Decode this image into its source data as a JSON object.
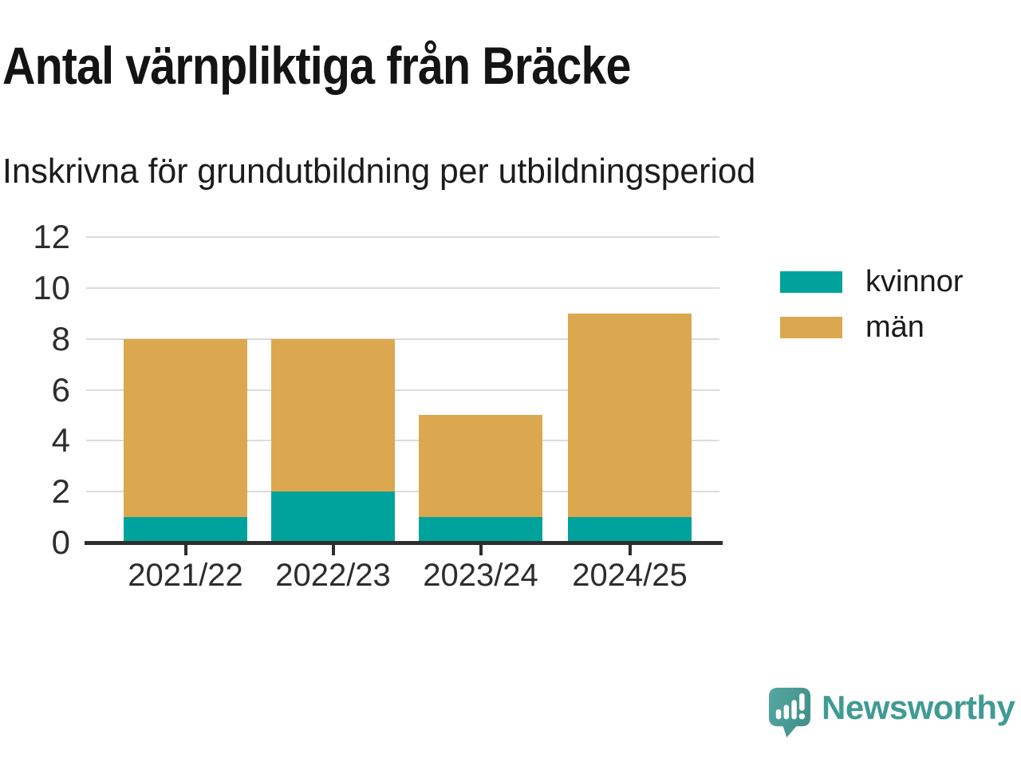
{
  "header": {
    "title": "Antal värnpliktiga från Bräcke",
    "subtitle": "Inskrivna för grundutbildning per utbildningsperiod"
  },
  "chart_data": {
    "type": "bar",
    "stacked": true,
    "title": "Antal värnpliktiga från Bräcke",
    "subtitle": "Inskrivna för grundutbildning per utbildningsperiod",
    "categories": [
      "2021/22",
      "2022/23",
      "2023/24",
      "2024/25"
    ],
    "series": [
      {
        "name": "kvinnor",
        "color": "#00A39B",
        "values": [
          1,
          2,
          1,
          1
        ]
      },
      {
        "name": "män",
        "color": "#DBA84F",
        "values": [
          7,
          6,
          4,
          8
        ]
      }
    ],
    "totals": [
      8,
      8,
      5,
      9
    ],
    "xlabel": "",
    "ylabel": "",
    "ylim": [
      0,
      12
    ],
    "yticks": [
      0,
      2,
      4,
      6,
      8,
      10,
      12
    ],
    "grid": true,
    "legend_position": "right"
  },
  "legend": {
    "items": [
      {
        "label": "kvinnor",
        "color": "#00A39B"
      },
      {
        "label": "män",
        "color": "#DBA84F"
      }
    ]
  },
  "footer": {
    "brand": "Newsworthy",
    "brand_color": "#3F9B94",
    "logo_icon": "speech-bubble-bar-chart"
  }
}
